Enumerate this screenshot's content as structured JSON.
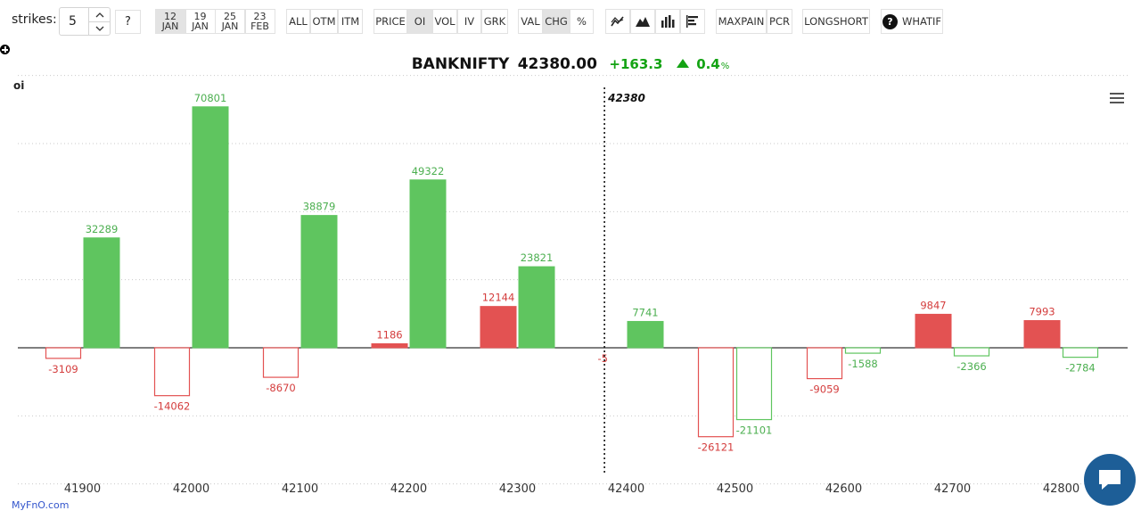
{
  "toolbar": {
    "strikes_label": "strikes:",
    "strikes_value": "5",
    "help_label": "?",
    "expiries": [
      {
        "day": "12",
        "month": "JAN",
        "active": true
      },
      {
        "day": "19",
        "month": "JAN",
        "active": false
      },
      {
        "day": "25",
        "month": "JAN",
        "active": false
      },
      {
        "day": "23",
        "month": "FEB",
        "active": false
      }
    ],
    "filter": [
      "ALL",
      "OTM",
      "ITM"
    ],
    "metrics": [
      "PRICE",
      "OI",
      "VOL",
      "IV",
      "GRK"
    ],
    "metric_active": "OI",
    "modes": [
      "VAL",
      "CHG",
      "%"
    ],
    "mode_active": "CHG",
    "chart_type_icons": [
      "line-chart-icon",
      "area-chart-icon",
      "bar-chart-icon",
      "horizontal-bar-chart-icon"
    ],
    "analysis": [
      "MAXPAIN",
      "PCR"
    ],
    "longshort": "LONGSHORT",
    "whatif": "WHATIF",
    "whatif_icon": "?"
  },
  "quote": {
    "symbol": "BANKNIFTY",
    "price": "42380.00",
    "change": "+163.3",
    "change_pct": "0.4",
    "pct_sign": "%"
  },
  "brand": "MyFnO.com",
  "colors": {
    "green": "#5fc55f",
    "red": "#e35252",
    "green_text": "#4caf50",
    "red_text": "#d43d3d"
  },
  "chart_data": {
    "type": "bar",
    "ylabel": "oi",
    "categories": [
      "41900",
      "42000",
      "42100",
      "42200",
      "42300",
      "42400",
      "42500",
      "42600",
      "42700",
      "42800"
    ],
    "spot": 42380,
    "spot_label": "42380",
    "series": [
      {
        "values": [
          -3109,
          -14062,
          -8670,
          1186,
          12144,
          null,
          -26121,
          -9059,
          9847,
          7993
        ]
      },
      {
        "values": [
          32289,
          70801,
          38879,
          49322,
          23821,
          7741,
          -21101,
          -1588,
          -2366,
          -2784
        ]
      }
    ],
    "extra_labels": [
      {
        "category": "42400",
        "text": "-5"
      }
    ],
    "ylim": [
      -40000,
      80000
    ],
    "grid": true
  }
}
